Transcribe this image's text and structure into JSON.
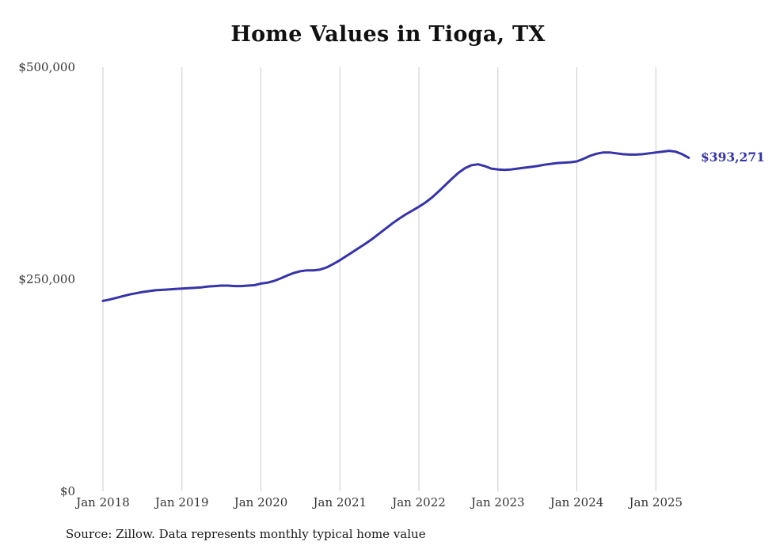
{
  "chart_data": {
    "type": "line",
    "title": "Home Values in Tioga, TX",
    "series_name": "Monthly typical home value",
    "x": [
      "Jan 2018",
      "Feb 2018",
      "Mar 2018",
      "Apr 2018",
      "May 2018",
      "Jun 2018",
      "Jul 2018",
      "Aug 2018",
      "Sep 2018",
      "Oct 2018",
      "Nov 2018",
      "Dec 2018",
      "Jan 2019",
      "Feb 2019",
      "Mar 2019",
      "Apr 2019",
      "May 2019",
      "Jun 2019",
      "Jul 2019",
      "Aug 2019",
      "Sep 2019",
      "Oct 2019",
      "Nov 2019",
      "Dec 2019",
      "Jan 2020",
      "Feb 2020",
      "Mar 2020",
      "Apr 2020",
      "May 2020",
      "Jun 2020",
      "Jul 2020",
      "Aug 2020",
      "Sep 2020",
      "Oct 2020",
      "Nov 2020",
      "Dec 2020",
      "Jan 2021",
      "Feb 2021",
      "Mar 2021",
      "Apr 2021",
      "May 2021",
      "Jun 2021",
      "Jul 2021",
      "Aug 2021",
      "Sep 2021",
      "Oct 2021",
      "Nov 2021",
      "Dec 2021",
      "Jan 2022",
      "Feb 2022",
      "Mar 2022",
      "Apr 2022",
      "May 2022",
      "Jun 2022",
      "Jul 2022",
      "Aug 2022",
      "Sep 2022",
      "Oct 2022",
      "Nov 2022",
      "Dec 2022",
      "Jan 2023",
      "Feb 2023",
      "Mar 2023",
      "Apr 2023",
      "May 2023",
      "Jun 2023",
      "Jul 2023",
      "Aug 2023",
      "Sep 2023",
      "Oct 2023",
      "Nov 2023",
      "Dec 2023",
      "Jan 2024",
      "Feb 2024",
      "Mar 2024",
      "Apr 2024",
      "May 2024",
      "Jun 2024",
      "Jul 2024",
      "Aug 2024",
      "Sep 2024",
      "Oct 2024",
      "Nov 2024",
      "Dec 2024",
      "Jan 2025",
      "Feb 2025",
      "Mar 2025",
      "Apr 2025",
      "May 2025",
      "Jun 2025"
    ],
    "values": [
      224500,
      226000,
      228000,
      230000,
      232000,
      233500,
      235000,
      236000,
      237000,
      237500,
      238000,
      238500,
      239000,
      239500,
      240000,
      240500,
      241500,
      242000,
      242500,
      242500,
      242000,
      242000,
      242500,
      243000,
      245000,
      246000,
      248000,
      251000,
      254500,
      257500,
      259500,
      260500,
      260500,
      261500,
      264000,
      268000,
      272500,
      277500,
      282500,
      287500,
      292500,
      298000,
      304000,
      310000,
      316000,
      321500,
      326500,
      331000,
      335500,
      340500,
      346500,
      353500,
      361000,
      368500,
      375500,
      381000,
      384500,
      385500,
      383500,
      380500,
      379500,
      379000,
      379500,
      380500,
      381500,
      382500,
      383500,
      385000,
      386000,
      387000,
      387500,
      388000,
      389000,
      392000,
      395500,
      398000,
      399500,
      399500,
      398500,
      397500,
      397000,
      397000,
      397500,
      398500,
      399500,
      400500,
      401500,
      400500,
      397500,
      393271
    ],
    "ylim": [
      0,
      500000
    ],
    "yticks": [
      {
        "value": 0,
        "label": "$0"
      },
      {
        "value": 250000,
        "label": "$250,000"
      },
      {
        "value": 500000,
        "label": "$500,000"
      }
    ],
    "xtick_month": "Jan",
    "end_label": "$393,271",
    "latest_value": 393271,
    "line_color": "#3634a8",
    "grid_color": "#cccccc",
    "tick_color": "#333333",
    "grid": "vertical-only",
    "legend": "none",
    "source": "Source: Zillow. Data represents monthly typical home value"
  }
}
